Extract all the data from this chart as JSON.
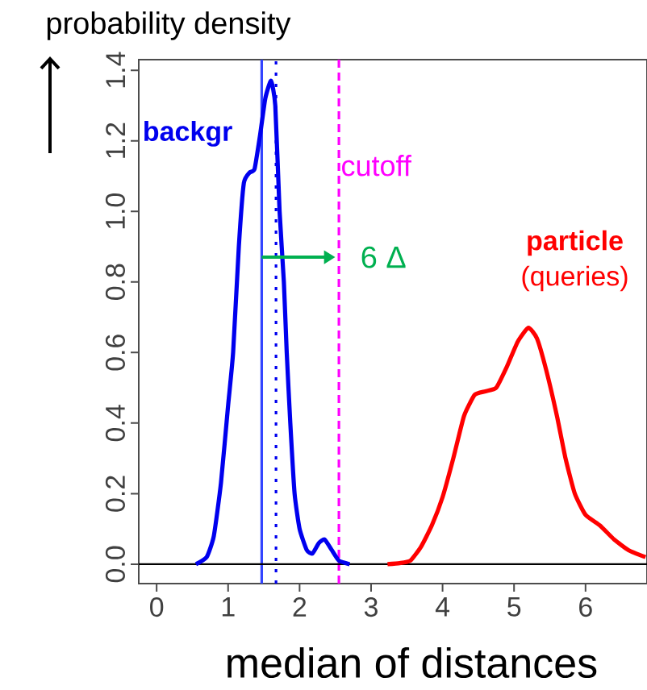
{
  "chart_data": {
    "type": "line",
    "xlabel": "median of distances",
    "ylabel": "probability density",
    "xlim": [
      -0.25,
      6.86
    ],
    "ylim": [
      -0.055,
      1.43
    ],
    "xticks": [
      0,
      1,
      2,
      3,
      4,
      5,
      6
    ],
    "yticks": [
      {
        "value": 0,
        "label": "0.0"
      },
      {
        "value": 0.2,
        "label": "0.2"
      },
      {
        "value": 0.4,
        "label": "0.4"
      },
      {
        "value": 0.6,
        "label": "0.6"
      },
      {
        "value": 0.8,
        "label": "0.8"
      },
      {
        "value": 1.0,
        "label": "1.0"
      },
      {
        "value": 1.2,
        "label": "1.2"
      },
      {
        "value": 1.4,
        "label": "1.4"
      }
    ],
    "grid": false,
    "series": [
      {
        "name": "backgr",
        "color": "#0000ee",
        "x": [
          0.55,
          0.7,
          0.8,
          0.9,
          1.0,
          1.07,
          1.15,
          1.22,
          1.3,
          1.37,
          1.45,
          1.52,
          1.6,
          1.66,
          1.72,
          1.78,
          1.82,
          1.87,
          1.93,
          2.0,
          2.1,
          2.18,
          2.27,
          2.35,
          2.45,
          2.55,
          2.7
        ],
        "values": [
          0,
          0.02,
          0.08,
          0.23,
          0.45,
          0.6,
          0.9,
          1.08,
          1.11,
          1.12,
          1.22,
          1.32,
          1.37,
          1.3,
          1.0,
          0.8,
          0.6,
          0.4,
          0.2,
          0.1,
          0.04,
          0.03,
          0.06,
          0.07,
          0.04,
          0.01,
          0
        ]
      },
      {
        "name": "**particle** (queries)",
        "color": "#ff0000",
        "x": [
          3.23,
          3.4,
          3.55,
          3.7,
          3.85,
          4.0,
          4.15,
          4.3,
          4.45,
          4.6,
          4.75,
          4.9,
          5.05,
          5.2,
          5.32,
          5.45,
          5.6,
          5.72,
          5.85,
          6.0,
          6.2,
          6.4,
          6.6,
          6.84
        ],
        "values": [
          0,
          0.003,
          0.01,
          0.05,
          0.11,
          0.19,
          0.3,
          0.42,
          0.48,
          0.49,
          0.5,
          0.56,
          0.63,
          0.67,
          0.64,
          0.55,
          0.42,
          0.3,
          0.2,
          0.14,
          0.11,
          0.07,
          0.04,
          0.02
        ]
      }
    ],
    "ref_lines": [
      {
        "axis": "x",
        "value": 1.47,
        "color": "#3344ff",
        "line_style": "solid"
      },
      {
        "axis": "x",
        "value": 1.67,
        "color": "#0000ee",
        "line_style": "dotted"
      },
      {
        "axis": "x",
        "value": 2.55,
        "label": "cutoff",
        "color": "#ff00ff",
        "line_style": "dashed"
      },
      {
        "axis": "y",
        "value": 0,
        "color": "#000000",
        "line_style": "solid"
      }
    ],
    "annotations": [
      {
        "text": "6 Δ",
        "x": 2.5,
        "y": 0.87
      }
    ]
  }
}
